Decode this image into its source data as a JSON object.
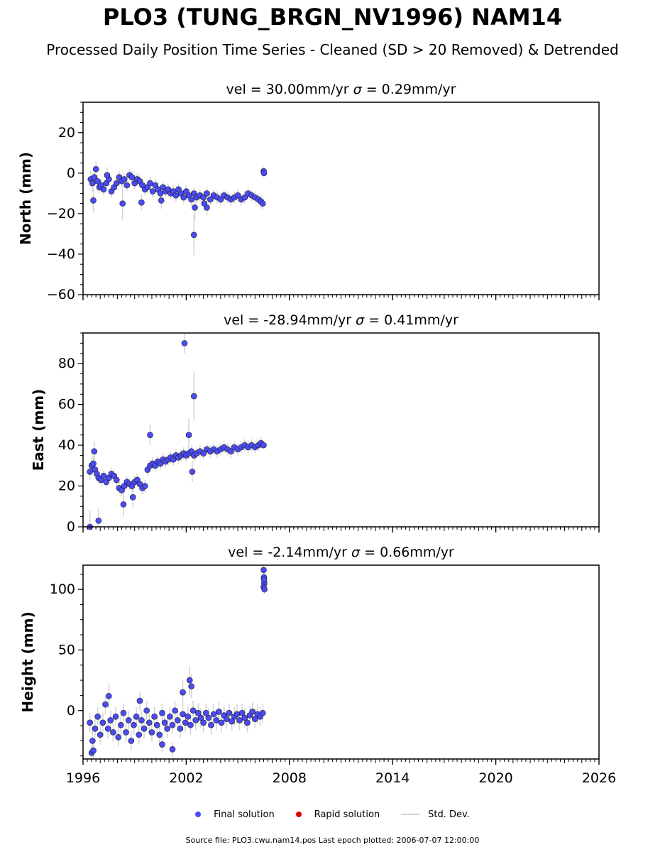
{
  "title": "PLO3 (TUNG_BRGN_NV1996) NAM14",
  "subtitle": "Processed Daily Position Time Series - Cleaned (SD > 20 Removed) & Detrended",
  "legend": {
    "final": "Final solution",
    "rapid": "Rapid solution",
    "stddev": "Std. Dev."
  },
  "source_note": "Source file: PLO3.cwu.nam14.pos  Last epoch plotted: 2006-07-07 12:00:00",
  "colors": {
    "final": "#4b4bf5",
    "final_edge": "#1a1a1a",
    "rapid": "#e00000",
    "stddev": "#d3d3d3"
  },
  "chart_data": [
    {
      "type": "scatter",
      "panel": "north",
      "title_prefix": "vel = 30.00mm/yr",
      "sigma_value": "= 0.29mm/yr",
      "ylabel": "North (mm)",
      "xlim": [
        1996,
        2026
      ],
      "ylim": [
        -60,
        35
      ],
      "yticks": [
        20,
        0,
        -20,
        -40,
        -60
      ],
      "ytick_labels": [
        "20",
        "0",
        "−20",
        "−40",
        "−60"
      ],
      "series": [
        {
          "name": "Final solution",
          "x": [
            1996.45,
            1996.55,
            1996.65,
            1996.75,
            1996.85,
            1996.95,
            1997.05,
            1997.2,
            1997.35,
            1997.5,
            1997.65,
            1997.8,
            1997.95,
            1998.1,
            1998.25,
            1998.4,
            1998.55,
            1998.7,
            1998.85,
            1999.0,
            1999.15,
            1999.3,
            1999.45,
            1999.6,
            1999.75,
            1999.9,
            2000.05,
            2000.2,
            2000.35,
            2000.5,
            2000.65,
            2000.8,
            2000.95,
            2001.1,
            2001.25,
            2001.4,
            2001.55,
            2001.7,
            2001.85,
            2002.0,
            2002.15,
            2002.3,
            2002.45,
            2002.6,
            2002.8,
            2003.0,
            2003.2,
            2003.4,
            2003.6,
            2003.8,
            2004.0,
            2004.2,
            2004.4,
            2004.6,
            2004.8,
            2005.0,
            2005.2,
            2005.4,
            2005.6,
            2005.8,
            2006.0,
            2006.2,
            2006.35,
            2006.45,
            2006.5,
            2006.52
          ],
          "y": [
            -3,
            -5,
            -2,
            2,
            -4,
            -7,
            -6,
            -8,
            -5,
            -3,
            -9,
            -7,
            -5,
            -2,
            -4,
            -3,
            -6,
            -1,
            -2,
            -5,
            -3,
            -4,
            -6,
            -8,
            -7,
            -5,
            -9,
            -6,
            -8,
            -10,
            -7,
            -9,
            -8,
            -10,
            -9,
            -11,
            -8,
            -10,
            -12,
            -9,
            -11,
            -13,
            -10,
            -12,
            -11,
            -12,
            -10,
            -13,
            -11,
            -12,
            -13,
            -11,
            -12,
            -13,
            -12,
            -11,
            -13,
            -12,
            -10,
            -11,
            -12,
            -13,
            -14,
            -15,
            1,
            0
          ],
          "err": [
            4,
            4,
            4,
            4,
            3,
            3,
            3,
            3,
            3,
            3,
            3,
            3,
            3,
            3,
            3,
            3,
            3,
            3,
            3,
            3,
            3,
            3,
            3,
            3,
            3,
            3,
            3,
            3,
            3,
            3,
            3,
            3,
            3,
            3,
            3,
            3,
            3,
            3,
            3,
            3,
            3,
            3,
            3,
            3,
            3,
            3,
            3,
            3,
            3,
            3,
            3,
            3,
            3,
            3,
            3,
            3,
            3,
            3,
            3,
            3,
            3,
            3,
            3,
            3,
            2,
            2
          ]
        },
        {
          "name": "Final solution (outliers)",
          "x": [
            1996.6,
            1997.4,
            1998.3,
            1999.4,
            2000.55,
            2002.45,
            2002.5,
            2003.2,
            2003.05
          ],
          "y": [
            -13.5,
            -1,
            -15,
            -14.5,
            -13.5,
            -30.5,
            -17,
            -17,
            -15
          ],
          "err": [
            6,
            4,
            8,
            4,
            4,
            10,
            6,
            4,
            4
          ]
        }
      ]
    },
    {
      "type": "scatter",
      "panel": "east",
      "title_prefix": "vel = -28.94mm/yr",
      "sigma_value": "= 0.41mm/yr",
      "ylabel": "East (mm)",
      "xlim": [
        1996,
        2026
      ],
      "ylim": [
        0,
        95
      ],
      "yticks": [
        80,
        60,
        40,
        20,
        0
      ],
      "ytick_labels": [
        "80",
        "60",
        "40",
        "20",
        "0"
      ],
      "series": [
        {
          "name": "Final solution",
          "x": [
            1996.4,
            1996.5,
            1996.6,
            1996.7,
            1996.8,
            1996.9,
            1997.05,
            1997.2,
            1997.35,
            1997.5,
            1997.65,
            1997.8,
            1997.95,
            1998.1,
            1998.25,
            1998.4,
            1998.55,
            1998.7,
            1998.85,
            1999.0,
            1999.15,
            1999.3,
            1999.45,
            1999.6,
            1999.75,
            1999.9,
            2000.05,
            2000.2,
            2000.35,
            2000.5,
            2000.65,
            2000.8,
            2000.95,
            2001.1,
            2001.25,
            2001.4,
            2001.55,
            2001.7,
            2001.85,
            2002.0,
            2002.15,
            2002.3,
            2002.45,
            2002.6,
            2002.8,
            2003.0,
            2003.2,
            2003.4,
            2003.6,
            2003.8,
            2004.0,
            2004.2,
            2004.4,
            2004.6,
            2004.8,
            2005.0,
            2005.2,
            2005.4,
            2005.6,
            2005.8,
            2006.0,
            2006.2,
            2006.35,
            2006.5
          ],
          "y": [
            27,
            30,
            31,
            28,
            26,
            24,
            23,
            25,
            22,
            24,
            26,
            25,
            23,
            19,
            18,
            20,
            22,
            21,
            20,
            22,
            23,
            21,
            19,
            20,
            28,
            30,
            31,
            30,
            32,
            31,
            33,
            32,
            33,
            34,
            33,
            35,
            34,
            35,
            36,
            35,
            36,
            37,
            35,
            36,
            37,
            36,
            38,
            37,
            38,
            37,
            38,
            39,
            38,
            37,
            39,
            38,
            39,
            40,
            39,
            40,
            39,
            40,
            41,
            40
          ],
          "err": [
            4,
            4,
            4,
            3,
            3,
            3,
            3,
            3,
            3,
            3,
            3,
            3,
            3,
            3,
            3,
            3,
            3,
            3,
            3,
            3,
            3,
            3,
            3,
            3,
            3,
            3,
            3,
            3,
            3,
            3,
            3,
            3,
            3,
            3,
            3,
            3,
            3,
            3,
            3,
            3,
            3,
            3,
            3,
            3,
            3,
            3,
            3,
            3,
            3,
            3,
            3,
            3,
            3,
            3,
            3,
            3,
            3,
            3,
            3,
            3,
            3,
            3,
            3,
            2
          ]
        },
        {
          "name": "Final solution (outliers)",
          "x": [
            1996.4,
            1996.9,
            1996.65,
            1998.35,
            1998.9,
            1999.9,
            2001.9,
            2002.15,
            2002.45,
            2002.35
          ],
          "y": [
            0,
            3,
            37,
            11,
            14.5,
            45,
            90,
            45,
            64,
            27
          ],
          "err": [
            8,
            6,
            5,
            6,
            5,
            5,
            5,
            8,
            12,
            5
          ]
        }
      ]
    },
    {
      "type": "scatter",
      "panel": "height",
      "title_prefix": "vel = -2.14mm/yr",
      "sigma_value": "= 0.66mm/yr",
      "ylabel": "Height (mm)",
      "xlim": [
        1996,
        2026
      ],
      "ylim": [
        -40,
        120
      ],
      "yticks": [
        100,
        50,
        0
      ],
      "ytick_labels": [
        "100",
        "50",
        "0"
      ],
      "series": [
        {
          "name": "Final solution",
          "x": [
            1996.4,
            1996.55,
            1996.7,
            1996.85,
            1997.0,
            1997.15,
            1997.3,
            1997.45,
            1997.6,
            1997.75,
            1997.9,
            1998.05,
            1998.2,
            1998.35,
            1998.5,
            1998.65,
            1998.8,
            1998.95,
            1999.1,
            1999.25,
            1999.4,
            1999.55,
            1999.7,
            1999.85,
            2000.0,
            2000.15,
            2000.3,
            2000.45,
            2000.6,
            2000.75,
            2000.9,
            2001.05,
            2001.2,
            2001.35,
            2001.5,
            2001.65,
            2001.8,
            2001.95,
            2002.1,
            2002.25,
            2002.4,
            2002.55,
            2002.7,
            2002.85,
            2003.0,
            2003.15,
            2003.3,
            2003.45,
            2003.6,
            2003.75,
            2003.9,
            2004.05,
            2004.2,
            2004.35,
            2004.5,
            2004.65,
            2004.8,
            2004.95,
            2005.1,
            2005.25,
            2005.4,
            2005.55,
            2005.7,
            2005.85,
            2006.0,
            2006.15,
            2006.3,
            2006.45
          ],
          "y": [
            -10,
            -25,
            -15,
            -5,
            -20,
            -10,
            5,
            -15,
            -8,
            -18,
            -5,
            -22,
            -12,
            -2,
            -18,
            -8,
            -25,
            -12,
            -5,
            -20,
            -8,
            -15,
            0,
            -10,
            -18,
            -5,
            -12,
            -20,
            -2,
            -10,
            -15,
            -5,
            -12,
            0,
            -8,
            -15,
            -3,
            -10,
            -5,
            -12,
            0,
            -8,
            -2,
            -6,
            -10,
            -2,
            -6,
            -12,
            -3,
            -8,
            -1,
            -10,
            -4,
            -7,
            -2,
            -9,
            -5,
            -3,
            -8,
            -2,
            -6,
            -10,
            -4,
            -1,
            -7,
            -3,
            -5,
            -2
          ],
          "err": [
            8,
            8,
            8,
            8,
            8,
            8,
            8,
            8,
            8,
            8,
            8,
            8,
            8,
            8,
            8,
            8,
            8,
            8,
            8,
            8,
            8,
            8,
            8,
            8,
            8,
            8,
            8,
            8,
            8,
            8,
            8,
            8,
            8,
            8,
            8,
            8,
            8,
            8,
            8,
            8,
            8,
            8,
            8,
            8,
            8,
            8,
            8,
            8,
            8,
            8,
            8,
            8,
            8,
            8,
            8,
            8,
            8,
            8,
            8,
            8,
            8,
            8,
            8,
            8,
            8,
            8,
            8,
            8
          ]
        },
        {
          "name": "Final solution (outliers)",
          "x": [
            1996.5,
            1996.6,
            1997.5,
            1999.3,
            2000.6,
            2001.2,
            2001.8,
            2002.2,
            2002.3,
            2006.5,
            2006.52,
            2006.54,
            2006.5,
            2006.52,
            2006.55
          ],
          "y": [
            -35,
            -33,
            12,
            8,
            -28,
            -32,
            15,
            25,
            20,
            116,
            110,
            105,
            102,
            108,
            100
          ],
          "err": [
            6,
            6,
            10,
            8,
            6,
            6,
            10,
            12,
            10,
            4,
            4,
            4,
            4,
            4,
            4
          ]
        }
      ]
    }
  ],
  "x_axis": {
    "tick_years": [
      1996,
      2002,
      2008,
      2014,
      2020,
      2026
    ],
    "tick_labels": [
      "1996",
      "2002",
      "2008",
      "2014",
      "2020",
      "2026"
    ]
  }
}
